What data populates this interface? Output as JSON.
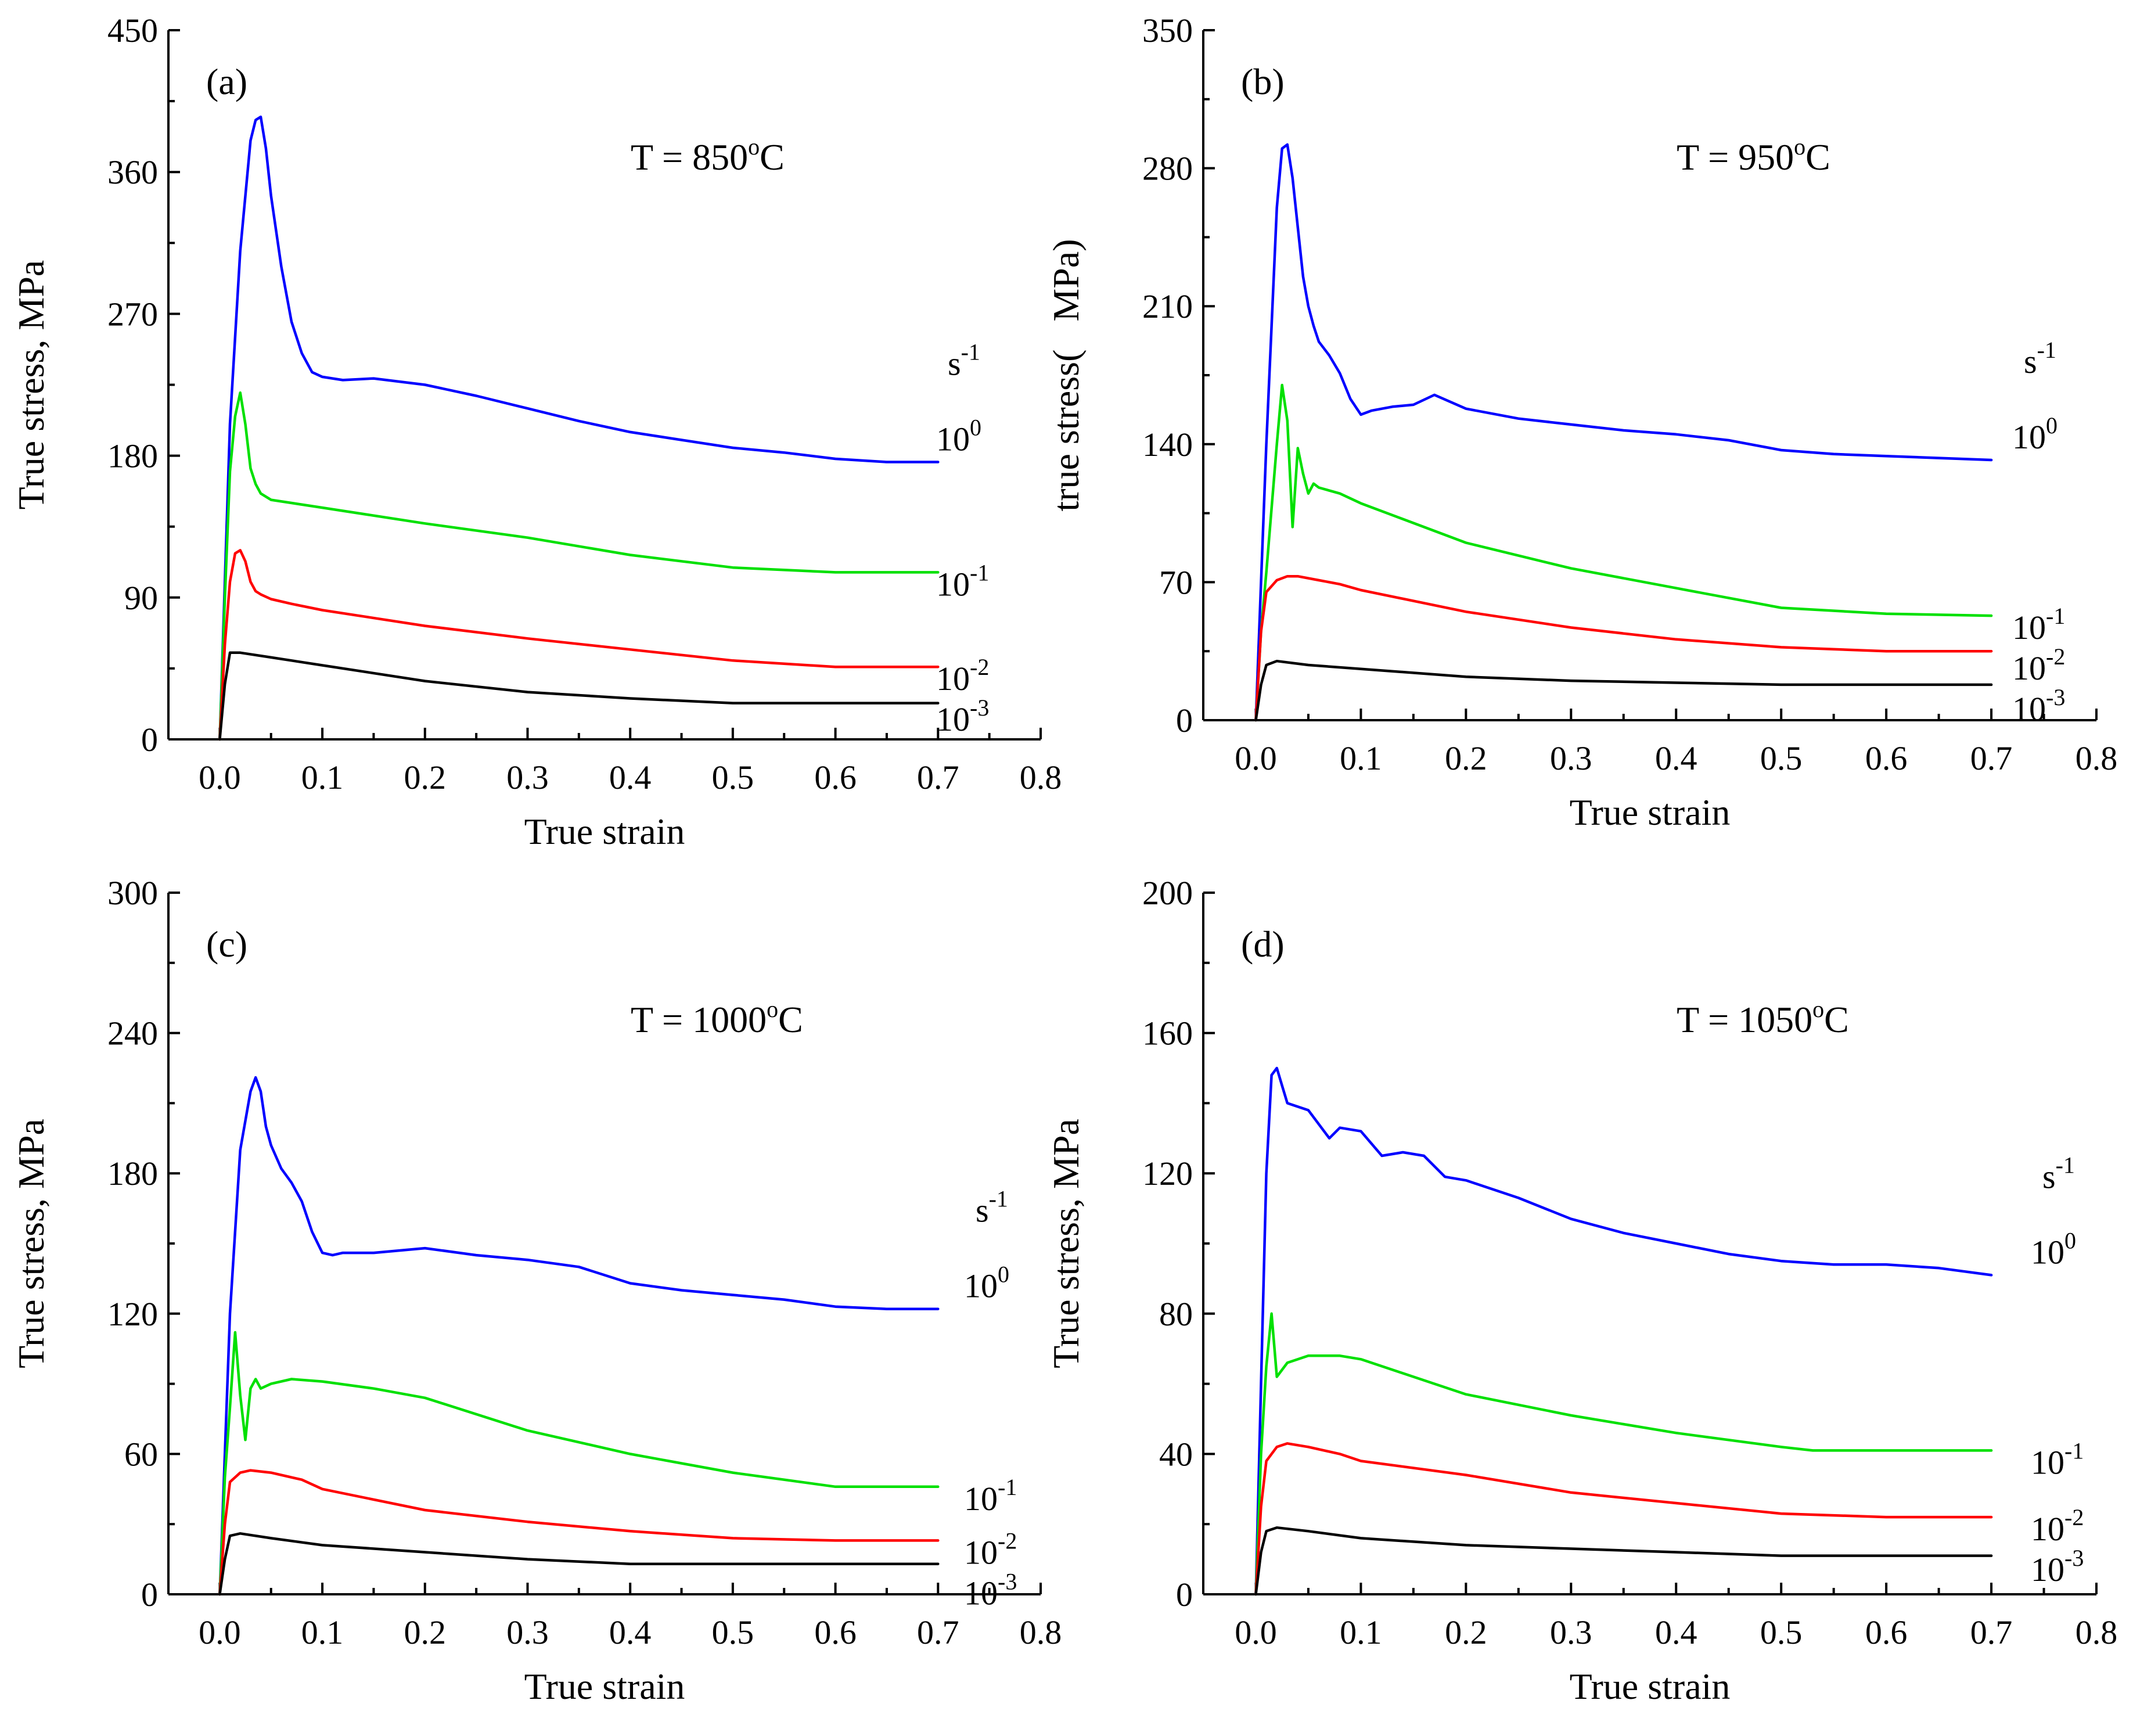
{
  "chart_data": [
    {
      "type": "line",
      "panel": "(a)",
      "temperature_label": "T = 850",
      "temperature_unit": "oC",
      "xlabel": "True strain",
      "ylabel": "True stress, MPa",
      "xlim": [
        -0.05,
        0.8
      ],
      "ylim": [
        0,
        450
      ],
      "xticks": [
        "0.0",
        "0.1",
        "0.2",
        "0.3",
        "0.4",
        "0.5",
        "0.6",
        "0.7",
        "0.8"
      ],
      "yticks": [
        "0",
        "90",
        "180",
        "270",
        "360",
        "450"
      ],
      "unit_label": "s",
      "unit_exponent": "-1",
      "series": [
        {
          "name": "1",
          "exponent": "0",
          "color": "#0000ff",
          "x": [
            0,
            0.005,
            0.01,
            0.02,
            0.03,
            0.035,
            0.04,
            0.045,
            0.05,
            0.06,
            0.07,
            0.08,
            0.09,
            0.1,
            0.12,
            0.15,
            0.2,
            0.25,
            0.3,
            0.35,
            0.4,
            0.45,
            0.5,
            0.55,
            0.6,
            0.65,
            0.7
          ],
          "y": [
            0,
            100,
            200,
            310,
            380,
            393,
            395,
            375,
            345,
            300,
            265,
            245,
            233,
            230,
            228,
            229,
            225,
            218,
            210,
            202,
            195,
            190,
            185,
            182,
            178,
            176,
            176
          ]
        },
        {
          "name": "1",
          "exponent": "-1",
          "color": "#00e000",
          "x": [
            0,
            0.005,
            0.01,
            0.015,
            0.02,
            0.025,
            0.03,
            0.035,
            0.04,
            0.05,
            0.07,
            0.1,
            0.2,
            0.3,
            0.4,
            0.5,
            0.6,
            0.7
          ],
          "y": [
            0,
            90,
            170,
            205,
            220,
            200,
            172,
            162,
            156,
            152,
            150,
            147,
            137,
            128,
            117,
            109,
            106,
            106
          ]
        },
        {
          "name": "1",
          "exponent": "-2",
          "color": "#ff0000",
          "x": [
            0,
            0.005,
            0.01,
            0.015,
            0.02,
            0.025,
            0.03,
            0.035,
            0.04,
            0.05,
            0.07,
            0.1,
            0.2,
            0.3,
            0.4,
            0.5,
            0.6,
            0.7
          ],
          "y": [
            0,
            60,
            100,
            118,
            120,
            113,
            100,
            94,
            92,
            89,
            86,
            82,
            72,
            64,
            57,
            50,
            46,
            46
          ]
        },
        {
          "name": "1",
          "exponent": "-3",
          "color": "#000000",
          "x": [
            0,
            0.005,
            0.01,
            0.02,
            0.05,
            0.1,
            0.2,
            0.3,
            0.4,
            0.5,
            0.6,
            0.7
          ],
          "y": [
            0,
            35,
            55,
            55,
            52,
            47,
            37,
            30,
            26,
            23,
            23,
            23
          ]
        }
      ]
    },
    {
      "type": "line",
      "panel": "(b)",
      "temperature_label": "T = 950",
      "temperature_unit": "oC",
      "xlabel": "True strain",
      "ylabel": "true stress(   MPa)",
      "xlim": [
        -0.05,
        0.8
      ],
      "ylim": [
        0,
        350
      ],
      "xticks": [
        "0.0",
        "0.1",
        "0.2",
        "0.3",
        "0.4",
        "0.5",
        "0.6",
        "0.7",
        "0.8"
      ],
      "yticks": [
        "0",
        "70",
        "140",
        "210",
        "280",
        "350"
      ],
      "unit_label": "s",
      "unit_exponent": "-1",
      "series": [
        {
          "name": "1",
          "exponent": "0",
          "color": "#0000ff",
          "x": [
            0,
            0.005,
            0.01,
            0.02,
            0.025,
            0.03,
            0.035,
            0.04,
            0.045,
            0.05,
            0.055,
            0.06,
            0.07,
            0.08,
            0.09,
            0.1,
            0.11,
            0.13,
            0.15,
            0.17,
            0.2,
            0.25,
            0.3,
            0.35,
            0.4,
            0.45,
            0.5,
            0.55,
            0.6,
            0.65,
            0.7
          ],
          "y": [
            0,
            70,
            140,
            260,
            290,
            292,
            275,
            250,
            225,
            210,
            200,
            192,
            185,
            176,
            163,
            155,
            157,
            159,
            160,
            165,
            158,
            153,
            150,
            147,
            145,
            142,
            137,
            135,
            134,
            133,
            132
          ]
        },
        {
          "name": "1",
          "exponent": "-1",
          "color": "#00e000",
          "x": [
            0,
            0.005,
            0.01,
            0.02,
            0.025,
            0.03,
            0.035,
            0.04,
            0.045,
            0.05,
            0.055,
            0.06,
            0.08,
            0.1,
            0.2,
            0.3,
            0.4,
            0.5,
            0.6,
            0.7
          ],
          "y": [
            0,
            45,
            75,
            140,
            170,
            152,
            98,
            138,
            125,
            115,
            120,
            118,
            115,
            110,
            90,
            77,
            67,
            57,
            54,
            53
          ]
        },
        {
          "name": "1",
          "exponent": "-2",
          "color": "#ff0000",
          "x": [
            0,
            0.005,
            0.01,
            0.02,
            0.03,
            0.04,
            0.06,
            0.08,
            0.1,
            0.2,
            0.3,
            0.4,
            0.5,
            0.6,
            0.7
          ],
          "y": [
            0,
            45,
            65,
            71,
            73,
            73,
            71,
            69,
            66,
            55,
            47,
            41,
            37,
            35,
            35
          ]
        },
        {
          "name": "1",
          "exponent": "-3",
          "color": "#000000",
          "x": [
            0,
            0.005,
            0.01,
            0.02,
            0.05,
            0.1,
            0.2,
            0.3,
            0.4,
            0.5,
            0.6,
            0.7
          ],
          "y": [
            0,
            18,
            28,
            30,
            28,
            26,
            22,
            20,
            19,
            18,
            18,
            18
          ]
        }
      ]
    },
    {
      "type": "line",
      "panel": "(c)",
      "temperature_label": "T = 1000",
      "temperature_unit": "oC",
      "xlabel": "True strain",
      "ylabel": "True stress, MPa",
      "xlim": [
        -0.05,
        0.8
      ],
      "ylim": [
        0,
        300
      ],
      "xticks": [
        "0.0",
        "0.1",
        "0.2",
        "0.3",
        "0.4",
        "0.5",
        "0.6",
        "0.7",
        "0.8"
      ],
      "yticks": [
        "0",
        "60",
        "120",
        "180",
        "240",
        "300"
      ],
      "unit_label": "s",
      "unit_exponent": "-1",
      "series": [
        {
          "name": "1",
          "exponent": "0",
          "color": "#0000ff",
          "x": [
            0,
            0.005,
            0.01,
            0.02,
            0.03,
            0.035,
            0.04,
            0.045,
            0.05,
            0.06,
            0.07,
            0.08,
            0.09,
            0.1,
            0.11,
            0.12,
            0.15,
            0.2,
            0.25,
            0.3,
            0.35,
            0.4,
            0.45,
            0.5,
            0.55,
            0.6,
            0.65,
            0.7
          ],
          "y": [
            0,
            60,
            120,
            190,
            215,
            221,
            215,
            200,
            192,
            182,
            176,
            168,
            155,
            146,
            145,
            146,
            146,
            148,
            145,
            143,
            140,
            133,
            130,
            128,
            126,
            123,
            122,
            122
          ]
        },
        {
          "name": "1",
          "exponent": "-1",
          "color": "#00e000",
          "x": [
            0,
            0.005,
            0.01,
            0.015,
            0.02,
            0.025,
            0.03,
            0.035,
            0.04,
            0.05,
            0.07,
            0.1,
            0.15,
            0.2,
            0.3,
            0.4,
            0.5,
            0.6,
            0.7
          ],
          "y": [
            0,
            50,
            80,
            112,
            85,
            66,
            88,
            92,
            88,
            90,
            92,
            91,
            88,
            84,
            70,
            60,
            52,
            46,
            46
          ]
        },
        {
          "name": "1",
          "exponent": "-2",
          "color": "#ff0000",
          "x": [
            0,
            0.005,
            0.01,
            0.02,
            0.03,
            0.05,
            0.08,
            0.1,
            0.2,
            0.3,
            0.4,
            0.5,
            0.6,
            0.7
          ],
          "y": [
            0,
            30,
            48,
            52,
            53,
            52,
            49,
            45,
            36,
            31,
            27,
            24,
            23,
            23
          ]
        },
        {
          "name": "1",
          "exponent": "-3",
          "color": "#000000",
          "x": [
            0,
            0.005,
            0.01,
            0.02,
            0.05,
            0.1,
            0.2,
            0.3,
            0.4,
            0.5,
            0.6,
            0.7
          ],
          "y": [
            0,
            15,
            25,
            26,
            24,
            21,
            18,
            15,
            13,
            13,
            13,
            13
          ]
        }
      ]
    },
    {
      "type": "line",
      "panel": "(d)",
      "temperature_label": "T = 1050",
      "temperature_unit": "oC",
      "xlabel": "True strain",
      "ylabel": "True stress, MPa",
      "xlim": [
        -0.05,
        0.8
      ],
      "ylim": [
        0,
        200
      ],
      "xticks": [
        "0.0",
        "0.1",
        "0.2",
        "0.3",
        "0.4",
        "0.5",
        "0.6",
        "0.7",
        "0.8"
      ],
      "yticks": [
        "0",
        "40",
        "80",
        "120",
        "160",
        "200"
      ],
      "unit_label": "s",
      "unit_exponent": "-1",
      "series": [
        {
          "name": "1",
          "exponent": "0",
          "color": "#0000ff",
          "x": [
            0,
            0.005,
            0.01,
            0.015,
            0.02,
            0.025,
            0.03,
            0.05,
            0.07,
            0.08,
            0.1,
            0.12,
            0.14,
            0.16,
            0.18,
            0.2,
            0.25,
            0.3,
            0.35,
            0.4,
            0.45,
            0.5,
            0.55,
            0.6,
            0.65,
            0.7
          ],
          "y": [
            0,
            60,
            120,
            148,
            150,
            145,
            140,
            138,
            130,
            133,
            132,
            125,
            126,
            125,
            119,
            118,
            113,
            107,
            103,
            100,
            97,
            95,
            94,
            94,
            93,
            91
          ]
        },
        {
          "name": "1",
          "exponent": "-1",
          "color": "#00e000",
          "x": [
            0,
            0.005,
            0.01,
            0.015,
            0.02,
            0.03,
            0.05,
            0.08,
            0.1,
            0.15,
            0.2,
            0.3,
            0.4,
            0.5,
            0.53,
            0.6,
            0.7
          ],
          "y": [
            0,
            40,
            65,
            80,
            62,
            66,
            68,
            68,
            67,
            62,
            57,
            51,
            46,
            42,
            41,
            41,
            41
          ]
        },
        {
          "name": "1",
          "exponent": "-2",
          "color": "#ff0000",
          "x": [
            0,
            0.005,
            0.01,
            0.02,
            0.03,
            0.05,
            0.08,
            0.1,
            0.2,
            0.3,
            0.4,
            0.5,
            0.6,
            0.7
          ],
          "y": [
            0,
            25,
            38,
            42,
            43,
            42,
            40,
            38,
            34,
            29,
            26,
            23,
            22,
            22
          ]
        },
        {
          "name": "1",
          "exponent": "-3",
          "color": "#000000",
          "x": [
            0,
            0.005,
            0.01,
            0.02,
            0.05,
            0.1,
            0.2,
            0.3,
            0.4,
            0.5,
            0.6,
            0.7
          ],
          "y": [
            0,
            12,
            18,
            19,
            18,
            16,
            14,
            13,
            12,
            11,
            11,
            11
          ]
        }
      ]
    }
  ]
}
